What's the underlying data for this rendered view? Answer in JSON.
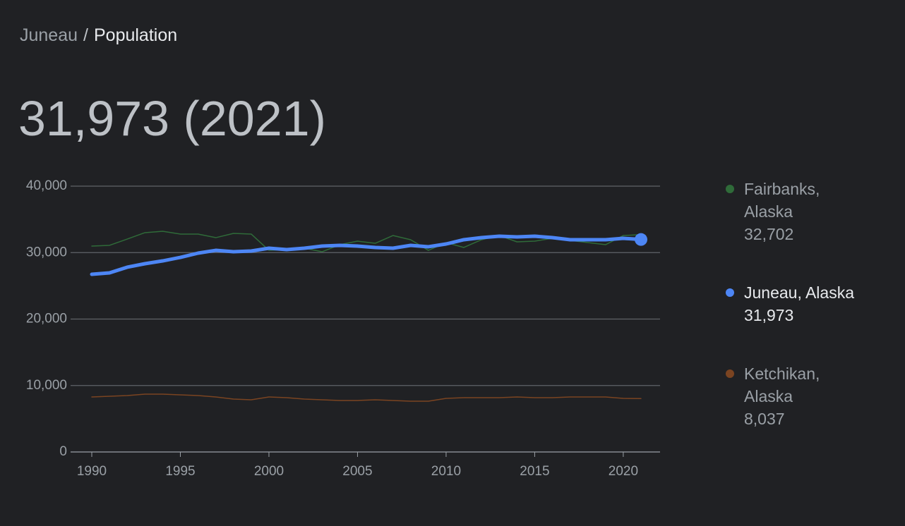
{
  "breadcrumb": {
    "parent": "Juneau",
    "separator": "/",
    "current": "Population"
  },
  "headline": "31,973 (2021)",
  "chart_data": {
    "type": "line",
    "x": [
      1990,
      1991,
      1992,
      1993,
      1994,
      1995,
      1996,
      1997,
      1998,
      1999,
      2000,
      2001,
      2002,
      2003,
      2004,
      2005,
      2006,
      2007,
      2008,
      2009,
      2010,
      2011,
      2012,
      2013,
      2014,
      2015,
      2016,
      2017,
      2018,
      2019,
      2020,
      2021
    ],
    "xlim": [
      1990,
      2021
    ],
    "xticks": [
      1990,
      1995,
      2000,
      2005,
      2010,
      2015,
      2020
    ],
    "ylim": [
      0,
      40000
    ],
    "yticks": [
      0,
      {
        "value": 10000,
        "label": "10,000"
      },
      {
        "value": 20000,
        "label": "20,000"
      },
      {
        "value": 30000,
        "label": "30,000"
      },
      {
        "value": 40000,
        "label": "40,000"
      }
    ],
    "grid": true,
    "series": [
      {
        "name": "Fairbanks, Alaska",
        "legend_value": "32,702",
        "color": "#2f6b39",
        "width": 1.5,
        "values": [
          30980,
          31090,
          32040,
          33000,
          33210,
          32790,
          32790,
          32250,
          32890,
          32790,
          30340,
          30450,
          30660,
          30130,
          31190,
          31720,
          31400,
          32570,
          31940,
          30340,
          31510,
          30770,
          31940,
          32570,
          31620,
          31720,
          32150,
          31830,
          31510,
          31190,
          32570,
          32702
        ]
      },
      {
        "name": "Juneau, Alaska",
        "legend_value": "31,973",
        "color": "#4d86f5",
        "width": 5,
        "end_marker": true,
        "values": [
          26737,
          26950,
          27800,
          28330,
          28750,
          29280,
          29920,
          30340,
          30130,
          30240,
          30660,
          30450,
          30660,
          30980,
          31090,
          30980,
          30770,
          30660,
          31090,
          30880,
          31300,
          31940,
          32250,
          32470,
          32360,
          32470,
          32250,
          31940,
          31940,
          31940,
          32150,
          31973
        ]
      },
      {
        "name": "Ketchikan, Alaska",
        "legend_value": "8,037",
        "color": "#7b4421",
        "width": 1.5,
        "values": [
          8280,
          8380,
          8490,
          8700,
          8700,
          8590,
          8490,
          8280,
          7960,
          7850,
          8280,
          8170,
          7960,
          7850,
          7750,
          7750,
          7850,
          7750,
          7640,
          7640,
          8060,
          8170,
          8170,
          8170,
          8280,
          8170,
          8170,
          8280,
          8280,
          8280,
          8060,
          8037
        ]
      }
    ]
  }
}
